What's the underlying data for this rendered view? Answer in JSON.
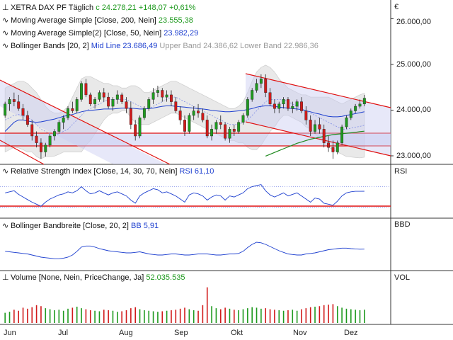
{
  "header": {
    "symbol": "XETRA DAX PF",
    "interval": "Täglich",
    "close_prefix": "c",
    "close_value": "24.278,21",
    "change_abs": "+148,07",
    "change_pct": "+0,61%"
  },
  "legend": {
    "ma200_label": "Moving Average Simple [Close, 200, Nein]",
    "ma200_value": "23.555,38",
    "ma50_label": "Moving Average Simple(2) [Close, 50, Nein]",
    "ma50_value": "23.982,29",
    "bb_label": "Bollinger Bands [20, 2]",
    "bb_mid": "Mid Line 23.686,49",
    "bb_upper": "Upper Band 24.386,62",
    "bb_lower": "Lower Band 22.986,36"
  },
  "rsi": {
    "label": "Relative Strength Index [Close, 14, 30, 70, Nein]",
    "value": "RSI 61,10",
    "axis": "RSI"
  },
  "bbd": {
    "label": "Bollinger Bandbreite [Close, 20, 2]",
    "value": "BB 5,91",
    "axis": "BBD"
  },
  "vol": {
    "label": "Volume [None, Nein, PriceChange, Ja]",
    "value": "52.035.535",
    "axis": "VOL"
  },
  "currency": "€",
  "price_axis": [
    "26.000,00",
    "25.000,00",
    "24.000,00",
    "23.000,00"
  ],
  "months": [
    "Jun",
    "Jul",
    "Aug",
    "Sep",
    "Okt",
    "Nov",
    "Dez"
  ],
  "colors": {
    "bull": "#1f9a1f",
    "bear": "#d11b1b",
    "ma50": "#1d3fcf",
    "ma200": "#1f8a1f",
    "band": "#e6e6e6",
    "trend": "#e01010"
  },
  "chart_data": {
    "type": "candlestick",
    "title": "XETRA DAX PF",
    "ylim": [
      22700,
      26400
    ],
    "ohlc": [
      [
        23900,
        24200,
        23850,
        24150
      ],
      [
        24150,
        24300,
        24000,
        24250
      ],
      [
        24250,
        24400,
        24100,
        24200
      ],
      [
        24200,
        24350,
        24000,
        24050
      ],
      [
        24050,
        24150,
        23800,
        23900
      ],
      [
        23900,
        24000,
        23650,
        23700
      ],
      [
        23700,
        23800,
        23350,
        23450
      ],
      [
        23450,
        23550,
        23200,
        23300
      ],
      [
        23300,
        23400,
        22950,
        23100
      ],
      [
        23100,
        23300,
        23000,
        23250
      ],
      [
        23250,
        23500,
        23200,
        23450
      ],
      [
        23450,
        23600,
        23350,
        23550
      ],
      [
        23550,
        23800,
        23500,
        23750
      ],
      [
        23750,
        23900,
        23600,
        23850
      ],
      [
        23850,
        24100,
        23800,
        24050
      ],
      [
        24050,
        24200,
        23950,
        24000
      ],
      [
        24000,
        24300,
        23950,
        24250
      ],
      [
        24250,
        24650,
        24200,
        24600
      ],
      [
        24600,
        24700,
        24300,
        24350
      ],
      [
        24350,
        24400,
        24100,
        24150
      ],
      [
        24150,
        24300,
        24050,
        24250
      ],
      [
        24250,
        24450,
        24200,
        24400
      ],
      [
        24400,
        24500,
        24200,
        24300
      ],
      [
        24300,
        24400,
        24050,
        24100
      ],
      [
        24100,
        24300,
        24000,
        24250
      ],
      [
        24250,
        24450,
        24150,
        24350
      ],
      [
        24350,
        24400,
        24150,
        24200
      ],
      [
        24200,
        24300,
        23950,
        24050
      ],
      [
        24050,
        24200,
        23600,
        23700
      ],
      [
        23700,
        23800,
        23350,
        23450
      ],
      [
        23450,
        23900,
        23400,
        23850
      ],
      [
        23850,
        24100,
        23800,
        24050
      ],
      [
        24050,
        24300,
        24000,
        24250
      ],
      [
        24250,
        24500,
        24150,
        24400
      ],
      [
        24400,
        24550,
        24300,
        24450
      ],
      [
        24450,
        24500,
        24200,
        24300
      ],
      [
        24300,
        24450,
        24200,
        24350
      ],
      [
        24350,
        24450,
        24100,
        24200
      ],
      [
        24200,
        24300,
        23950,
        24000
      ],
      [
        24000,
        24100,
        23700,
        23800
      ],
      [
        23800,
        23900,
        23450,
        23550
      ],
      [
        23550,
        23950,
        23500,
        23900
      ],
      [
        23900,
        24100,
        23800,
        24000
      ],
      [
        24000,
        24150,
        23850,
        23950
      ],
      [
        23950,
        24050,
        23750,
        23800
      ],
      [
        23800,
        23900,
        23400,
        23450
      ],
      [
        23450,
        23700,
        23350,
        23600
      ],
      [
        23600,
        23800,
        23500,
        23750
      ],
      [
        23750,
        23900,
        23600,
        23700
      ],
      [
        23700,
        23750,
        23350,
        23400
      ],
      [
        23400,
        23650,
        23300,
        23600
      ],
      [
        23600,
        23700,
        23450,
        23550
      ],
      [
        23550,
        23800,
        23500,
        23750
      ],
      [
        23750,
        23950,
        23700,
        23900
      ],
      [
        23900,
        24300,
        23850,
        24250
      ],
      [
        24250,
        24500,
        24200,
        24450
      ],
      [
        24450,
        24700,
        24400,
        24600
      ],
      [
        24600,
        24800,
        24500,
        24700
      ],
      [
        24700,
        24800,
        24300,
        24400
      ],
      [
        24400,
        24500,
        24100,
        24150
      ],
      [
        24150,
        24250,
        23950,
        24050
      ],
      [
        24050,
        24200,
        23950,
        24150
      ],
      [
        24150,
        24300,
        24050,
        24250
      ],
      [
        24250,
        24300,
        24000,
        24050
      ],
      [
        24050,
        24200,
        23950,
        24100
      ],
      [
        24100,
        24250,
        24000,
        24200
      ],
      [
        24200,
        24300,
        23950,
        24000
      ],
      [
        24000,
        24100,
        23700,
        23800
      ],
      [
        23800,
        23900,
        23450,
        23550
      ],
      [
        23550,
        23800,
        23500,
        23700
      ],
      [
        23700,
        23850,
        23500,
        23600
      ],
      [
        23600,
        23700,
        23200,
        23300
      ],
      [
        23300,
        23450,
        23100,
        23200
      ],
      [
        23200,
        23350,
        22950,
        23100
      ],
      [
        23100,
        23350,
        23050,
        23300
      ],
      [
        23300,
        23700,
        23250,
        23650
      ],
      [
        23650,
        23900,
        23600,
        23850
      ],
      [
        23850,
        24050,
        23800,
        24000
      ],
      [
        24000,
        24150,
        23950,
        24100
      ],
      [
        24100,
        24250,
        24050,
        24150
      ],
      [
        24150,
        24350,
        24100,
        24278
      ]
    ],
    "ma50": [
      23550,
      23650,
      23750,
      23800,
      23800,
      23780,
      23760,
      23750,
      23760,
      23780,
      23800,
      23820,
      23850,
      23880,
      23900,
      23920,
      23950,
      23980,
      24000,
      24010,
      24020,
      24030,
      24040,
      24040,
      24040,
      24050,
      24060,
      24060,
      24060,
      24050,
      24040,
      24040,
      24050,
      24060,
      24080,
      24100,
      24110,
      24110,
      24100,
      24090,
      24080,
      24070,
      24060,
      24050,
      24040,
      24030,
      24010,
      24000,
      23990,
      23980,
      23980,
      23990,
      24000,
      24010,
      24030,
      24050,
      24080,
      24100,
      24110,
      24110,
      24100,
      24080,
      24070,
      24060,
      24050,
      24040,
      24030,
      24000,
      23980,
      23950,
      23930,
      23900,
      23880,
      23870,
      23870,
      23880,
      23900,
      23920,
      23940,
      23960,
      23982
    ],
    "ma200": [
      null,
      null,
      null,
      null,
      null,
      null,
      null,
      null,
      null,
      null,
      null,
      null,
      null,
      null,
      null,
      null,
      null,
      null,
      null,
      null,
      null,
      null,
      null,
      null,
      null,
      null,
      null,
      null,
      null,
      null,
      null,
      null,
      null,
      null,
      null,
      null,
      null,
      null,
      null,
      null,
      null,
      null,
      null,
      null,
      null,
      null,
      null,
      null,
      null,
      null,
      null,
      null,
      null,
      null,
      null,
      null,
      null,
      null,
      23010,
      23050,
      23090,
      23130,
      23170,
      23210,
      23250,
      23290,
      23320,
      23350,
      23380,
      23400,
      23420,
      23440,
      23460,
      23480,
      23490,
      23500,
      23510,
      23520,
      23530,
      23545,
      23555
    ],
    "bb_mid": [
      23800,
      23850,
      23900,
      23920,
      23900,
      23850,
      23800,
      23700,
      23600,
      23550,
      23500,
      23480,
      23500,
      23550,
      23600,
      23700,
      23800,
      23900,
      24000,
      24050,
      24100,
      24150,
      24200,
      24250,
      24250,
      24250,
      24250,
      24250,
      24200,
      24150,
      24100,
      24050,
      24050,
      24100,
      24150,
      24200,
      24250,
      24300,
      24300,
      24250,
      24200,
      24150,
      24100,
      24050,
      24000,
      23950,
      23900,
      23850,
      23800,
      23750,
      23700,
      23700,
      23700,
      23750,
      23800,
      23900,
      24000,
      24100,
      24200,
      24250,
      24250,
      24250,
      24250,
      24200,
      24150,
      24100,
      24050,
      24000,
      23950,
      23900,
      23850,
      23800,
      23750,
      23700,
      23650,
      23600,
      23600,
      23620,
      23640,
      23660,
      23686
    ],
    "bb_upper": [
      24500,
      24550,
      24600,
      24650,
      24650,
      24600,
      24500,
      24400,
      24250,
      24100,
      24000,
      23950,
      23950,
      24000,
      24100,
      24300,
      24500,
      24700,
      24750,
      24750,
      24700,
      24650,
      24600,
      24600,
      24550,
      24550,
      24500,
      24500,
      24550,
      24550,
      24500,
      24400,
      24400,
      24450,
      24500,
      24550,
      24600,
      24650,
      24650,
      24600,
      24550,
      24500,
      24450,
      24400,
      24350,
      24300,
      24250,
      24200,
      24150,
      24100,
      24050,
      24050,
      24100,
      24200,
      24400,
      24650,
      24850,
      24950,
      25000,
      24950,
      24850,
      24700,
      24600,
      24500,
      24450,
      24400,
      24350,
      24350,
      24300,
      24300,
      24300,
      24300,
      24300,
      24250,
      24200,
      24150,
      24200,
      24250,
      24300,
      24350,
      24386
    ],
    "bb_lower": [
      23100,
      23150,
      23200,
      23190,
      23150,
      23100,
      23100,
      23000,
      22950,
      23000,
      23000,
      23010,
      23050,
      23100,
      23100,
      23100,
      23100,
      23100,
      23250,
      23350,
      23500,
      23650,
      23800,
      23900,
      23950,
      23950,
      24000,
      24000,
      23850,
      23750,
      23700,
      23700,
      23700,
      23750,
      23800,
      23850,
      23900,
      23950,
      23950,
      23900,
      23850,
      23800,
      23750,
      23700,
      23650,
      23600,
      23550,
      23500,
      23450,
      23400,
      23350,
      23350,
      23300,
      23300,
      23200,
      23150,
      23150,
      23250,
      23400,
      23550,
      23650,
      23800,
      23900,
      23900,
      23850,
      23800,
      23750,
      23650,
      23600,
      23500,
      23400,
      23300,
      23200,
      23150,
      23100,
      23050,
      23000,
      22990,
      22980,
      22970,
      22986
    ],
    "rsi": [
      58,
      60,
      62,
      55,
      50,
      45,
      40,
      36,
      32,
      40,
      46,
      50,
      54,
      56,
      60,
      58,
      62,
      70,
      62,
      56,
      58,
      62,
      58,
      54,
      58,
      60,
      56,
      52,
      44,
      38,
      52,
      58,
      62,
      66,
      64,
      58,
      60,
      56,
      52,
      46,
      40,
      54,
      58,
      56,
      52,
      44,
      50,
      54,
      52,
      44,
      52,
      50,
      54,
      58,
      66,
      70,
      72,
      74,
      62,
      54,
      50,
      54,
      58,
      52,
      55,
      58,
      52,
      46,
      40,
      48,
      46,
      38,
      36,
      34,
      42,
      52,
      58,
      60,
      61,
      61,
      61.1
    ],
    "rsi_levels": [
      30,
      70
    ],
    "bbd": [
      5.5,
      5.4,
      5.3,
      5.2,
      5.1,
      5.0,
      4.8,
      4.6,
      4.4,
      4.3,
      4.2,
      4.1,
      4.1,
      4.2,
      4.4,
      4.8,
      5.5,
      6.3,
      6.5,
      6.5,
      6.3,
      6.0,
      5.8,
      5.6,
      5.5,
      5.4,
      5.3,
      5.2,
      5.2,
      5.3,
      5.4,
      5.2,
      5.0,
      4.9,
      4.8,
      4.8,
      4.9,
      5.0,
      5.0,
      4.9,
      4.8,
      4.8,
      4.9,
      5.0,
      5.0,
      5.0,
      4.9,
      4.8,
      4.8,
      4.9,
      5.0,
      5.0,
      5.1,
      5.5,
      6.2,
      6.8,
      7.2,
      7.1,
      6.8,
      6.4,
      6.0,
      5.6,
      5.3,
      5.0,
      4.9,
      4.8,
      4.8,
      5.0,
      5.1,
      5.2,
      5.4,
      5.6,
      5.8,
      5.9,
      6.0,
      6.1,
      6.1,
      6.0,
      5.95,
      5.9,
      5.91
    ],
    "volume": [
      40,
      44,
      52,
      48,
      60,
      56,
      62,
      70,
      66,
      58,
      54,
      50,
      52,
      48,
      56,
      60,
      64,
      58,
      54,
      50,
      48,
      46,
      52,
      50,
      48,
      44,
      46,
      50,
      58,
      62,
      54,
      50,
      48,
      46,
      44,
      46,
      48,
      50,
      52,
      56,
      60,
      54,
      50,
      48,
      70,
      140,
      66,
      58,
      54,
      60,
      56,
      52,
      50,
      54,
      58,
      62,
      60,
      56,
      58,
      54,
      52,
      50,
      48,
      50,
      52,
      48,
      54,
      58,
      62,
      64,
      66,
      70,
      72,
      74,
      66,
      60,
      56,
      54,
      52,
      50,
      52.04
    ]
  }
}
